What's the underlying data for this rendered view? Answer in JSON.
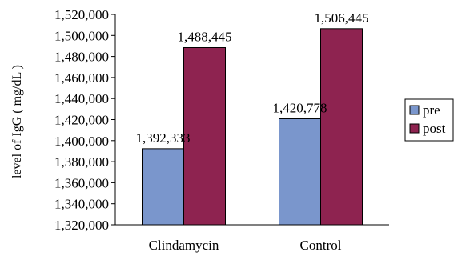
{
  "chart_data": {
    "type": "bar",
    "title": "",
    "xlabel": "",
    "ylabel": "level  of  IgG ( mg/dL )",
    "categories": [
      "Clindamycin",
      "Control"
    ],
    "series": [
      {
        "name": "pre",
        "values": [
          1392333,
          1420778
        ],
        "color": "#7a96cc"
      },
      {
        "name": "post",
        "values": [
          1488445,
          1506445
        ],
        "color": "#8e2350"
      }
    ],
    "data_labels": [
      [
        "1,392,333",
        "1,420,778"
      ],
      [
        "1,488,445",
        "1,506,445"
      ]
    ],
    "ylim": [
      1320000,
      1520000
    ],
    "yticks": [
      1320000,
      1340000,
      1360000,
      1380000,
      1400000,
      1420000,
      1440000,
      1460000,
      1480000,
      1500000,
      1520000
    ],
    "ytick_labels": [
      "1,320,000",
      "1,340,000",
      "1,360,000",
      "1,380,000",
      "1,400,000",
      "1,420,000",
      "1,440,000",
      "1,460,000",
      "1,480,000",
      "1,500,000",
      "1,520,000"
    ],
    "grid": false,
    "legend": "right"
  }
}
